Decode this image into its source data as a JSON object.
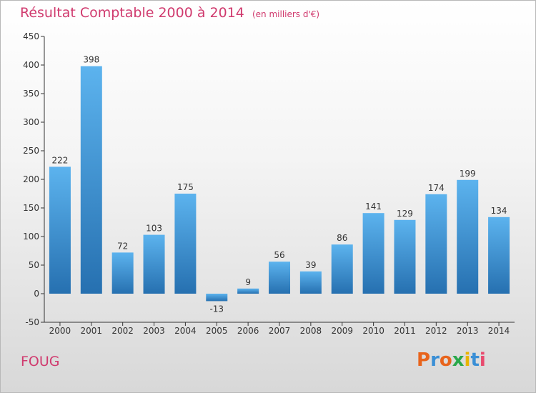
{
  "header": {
    "title": "Résultat Comptable 2000 à 2014",
    "subtitle": "(en milliers d'€)"
  },
  "footer": {
    "location": "FOUG",
    "logo_text": "Proxiti"
  },
  "colors": {
    "title": "#d03a6e",
    "bar_light": "#5cb3ee",
    "bar_dark": "#2670b0",
    "axis": "#333333",
    "logo_letters": [
      "#e8641c",
      "#3a8fd6",
      "#e8641c",
      "#2aa84a",
      "#e8b400",
      "#3a8fd6",
      "#e84a6e"
    ]
  },
  "chart_data": {
    "type": "bar",
    "title": "Résultat Comptable 2000 à 2014",
    "subtitle": "(en milliers d'€)",
    "categories": [
      "2000",
      "2001",
      "2002",
      "2003",
      "2004",
      "2005",
      "2006",
      "2007",
      "2008",
      "2009",
      "2010",
      "2011",
      "2012",
      "2013",
      "2014"
    ],
    "values": [
      222,
      398,
      72,
      103,
      175,
      -13,
      9,
      56,
      39,
      86,
      141,
      129,
      174,
      199,
      134
    ],
    "data_labels": [
      "222",
      "398",
      "72",
      "103",
      "175",
      "-13",
      "9",
      "56",
      "39",
      "86",
      "141",
      "129",
      "174",
      "199",
      "134"
    ],
    "ylim": [
      -50,
      450
    ],
    "yticks": [
      -50,
      0,
      50,
      100,
      150,
      200,
      250,
      300,
      350,
      400,
      450
    ],
    "ytick_labels": [
      "-50",
      "0",
      "50",
      "100",
      "150",
      "200",
      "250",
      "300",
      "350",
      "400",
      "450"
    ],
    "xlabel": "",
    "ylabel": "",
    "grid": false,
    "legend": "none"
  }
}
